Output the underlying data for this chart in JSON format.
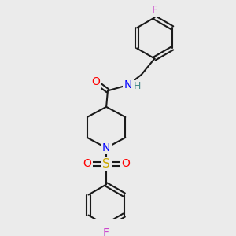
{
  "bg_color": "#ebebeb",
  "bond_color": "#1a1a1a",
  "bond_width": 1.5,
  "atom_colors": {
    "O": "#ff0000",
    "N": "#0000ff",
    "S": "#ccaa00",
    "F_top": "#cc44cc",
    "F_bot": "#cc44cc",
    "H": "#448888"
  },
  "font_size": 9,
  "font_size_small": 8
}
